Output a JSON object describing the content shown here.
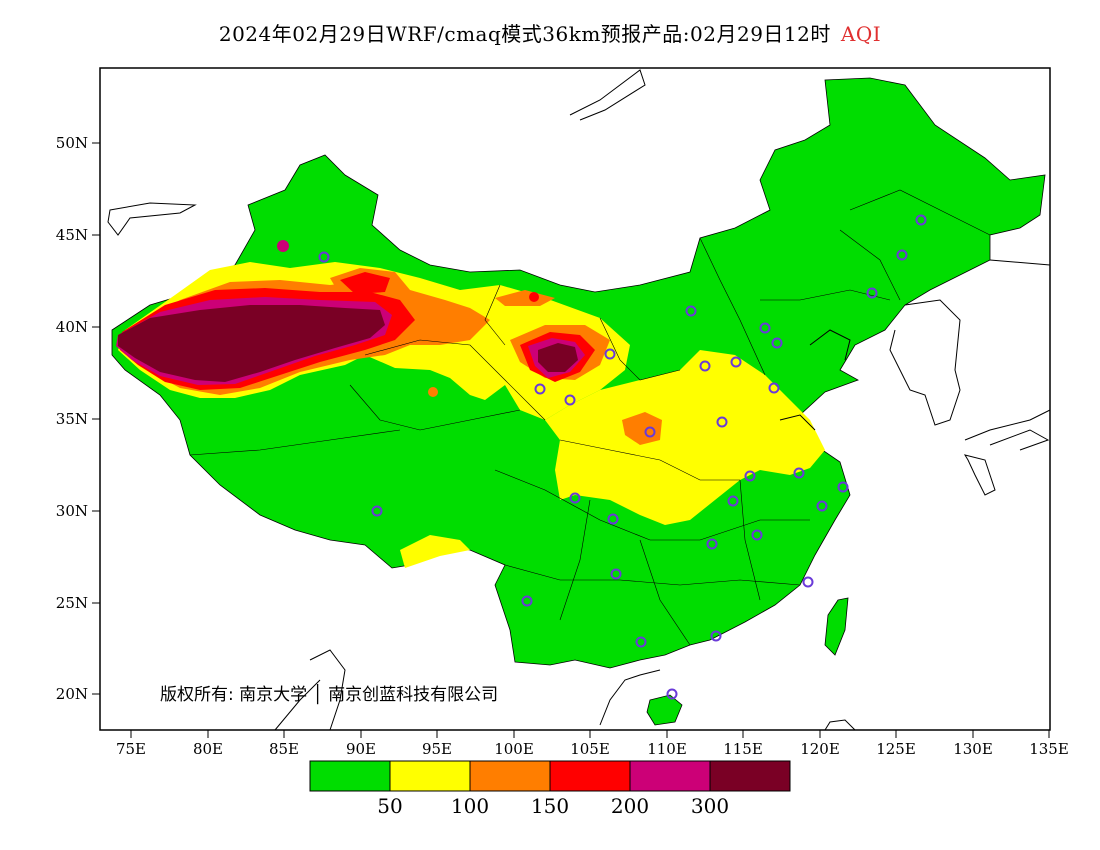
{
  "title": {
    "main": "2024年02月29日WRF/cmaq模式36km预报产品:02月29日12时",
    "variable": "AQI"
  },
  "axes": {
    "lat_labels": [
      "50N",
      "45N",
      "40N",
      "35N",
      "30N",
      "25N",
      "20N"
    ],
    "lon_labels": [
      "75E",
      "80E",
      "85E",
      "90E",
      "95E",
      "100E",
      "105E",
      "110E",
      "115E",
      "120E",
      "125E",
      "130E",
      "135E"
    ]
  },
  "copyright": "版权所有: 南京大学 │ 南京创蓝科技有限公司",
  "legend": {
    "colors": [
      "#00dd00",
      "#ffff00",
      "#ff7e00",
      "#ff0000",
      "#cc0077",
      "#7a0025"
    ],
    "labels": [
      "50",
      "100",
      "150",
      "200",
      "300"
    ]
  },
  "colors": {
    "good": "#00dd00",
    "moderate": "#ffff00",
    "usg": "#ff7e00",
    "unhealthy": "#ff0000",
    "very_unhealthy": "#cc0077",
    "hazardous": "#7a0025",
    "station": "#6a3ad8"
  },
  "stations_count": 31
}
